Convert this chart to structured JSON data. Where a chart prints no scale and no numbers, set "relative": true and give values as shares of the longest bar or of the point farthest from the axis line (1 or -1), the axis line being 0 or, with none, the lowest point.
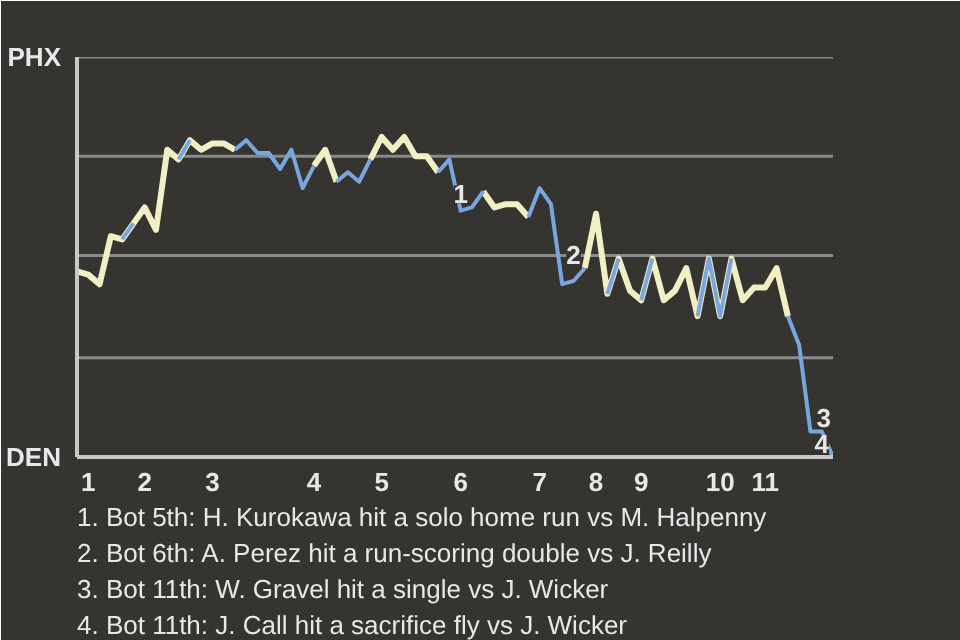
{
  "chart_data": {
    "type": "line",
    "relative": true,
    "categories": [
      null,
      "1",
      null,
      null,
      null,
      null,
      "2",
      null,
      null,
      null,
      null,
      null,
      "3",
      null,
      null,
      null,
      null,
      null,
      null,
      null,
      null,
      "4",
      null,
      null,
      null,
      null,
      null,
      "5",
      null,
      null,
      null,
      null,
      null,
      null,
      "6",
      null,
      null,
      null,
      null,
      null,
      null,
      "7",
      null,
      null,
      null,
      null,
      "8",
      null,
      null,
      null,
      "9",
      null,
      null,
      null,
      null,
      null,
      null,
      "10",
      null,
      null,
      null,
      "11",
      null,
      null,
      null,
      null,
      null,
      null
    ],
    "series": [
      {
        "color": "#f3efc4",
        "values": [
          0.58,
          0.57,
          0.54,
          0.69,
          0.68,
          0.73,
          0.78,
          0.71,
          0.96,
          0.93,
          0.99,
          0.96,
          0.98,
          0.98,
          0.96,
          null,
          null,
          null,
          null,
          null,
          null,
          0.91,
          0.96,
          0.86,
          null,
          null,
          0.93,
          1.0,
          0.96,
          1.0,
          0.94,
          0.94,
          0.89,
          null,
          null,
          null,
          0.83,
          0.78,
          0.79,
          0.79,
          0.75,
          null,
          null,
          null,
          null,
          0.59,
          0.76,
          0.51,
          0.62,
          0.52,
          0.49,
          0.62,
          0.49,
          0.52,
          0.59,
          0.44,
          0.62,
          0.44,
          0.62,
          0.49,
          0.53,
          0.53,
          0.59,
          0.44,
          null,
          null,
          null,
          null
        ]
      },
      {
        "color": "#7aa6e0",
        "values": [
          null,
          null,
          null,
          null,
          0.68,
          0.73,
          null,
          null,
          null,
          0.93,
          0.99,
          null,
          null,
          null,
          0.96,
          0.99,
          0.95,
          0.95,
          0.9,
          0.96,
          0.84,
          0.91,
          null,
          0.86,
          0.89,
          0.86,
          0.93,
          null,
          null,
          null,
          null,
          null,
          0.89,
          0.93,
          0.77,
          0.78,
          0.83,
          null,
          null,
          null,
          0.75,
          0.84,
          0.79,
          0.54,
          0.55,
          0.59,
          null,
          0.51,
          0.62,
          null,
          0.49,
          0.62,
          null,
          null,
          null,
          0.44,
          0.62,
          0.44,
          0.62,
          null,
          null,
          null,
          null,
          0.44,
          0.35,
          0.08,
          0.08,
          0.0
        ]
      }
    ],
    "ref_lines": [
      {
        "axis": "y",
        "value": 0.31,
        "color": "#8a8a8a"
      },
      {
        "axis": "y",
        "value": 0.63,
        "color": "#8a8a8a"
      },
      {
        "axis": "y",
        "value": 0.94,
        "color": "#8a8a8a"
      },
      {
        "axis": "y",
        "value": 1.25,
        "color": "#8a8a8a"
      }
    ],
    "annotations": [
      "PHX",
      "DEN",
      {
        "text": "1",
        "y": 0.78
      },
      {
        "text": "2",
        "y": 0.59
      },
      {
        "text": "3",
        "y": 0.08
      },
      {
        "text": "4",
        "y": 0.0
      },
      "1. Bot 5th: H. Kurokawa hit a solo home run vs M. Halpenny",
      "2. Bot 6th: A. Perez hit a run-scoring double vs J. Reilly",
      "3. Bot 11th: W. Gravel hit a single vs J. Wicker",
      "4. Bot 11th: J. Call hit a sacrifice fly vs J. Wicker"
    ]
  }
}
